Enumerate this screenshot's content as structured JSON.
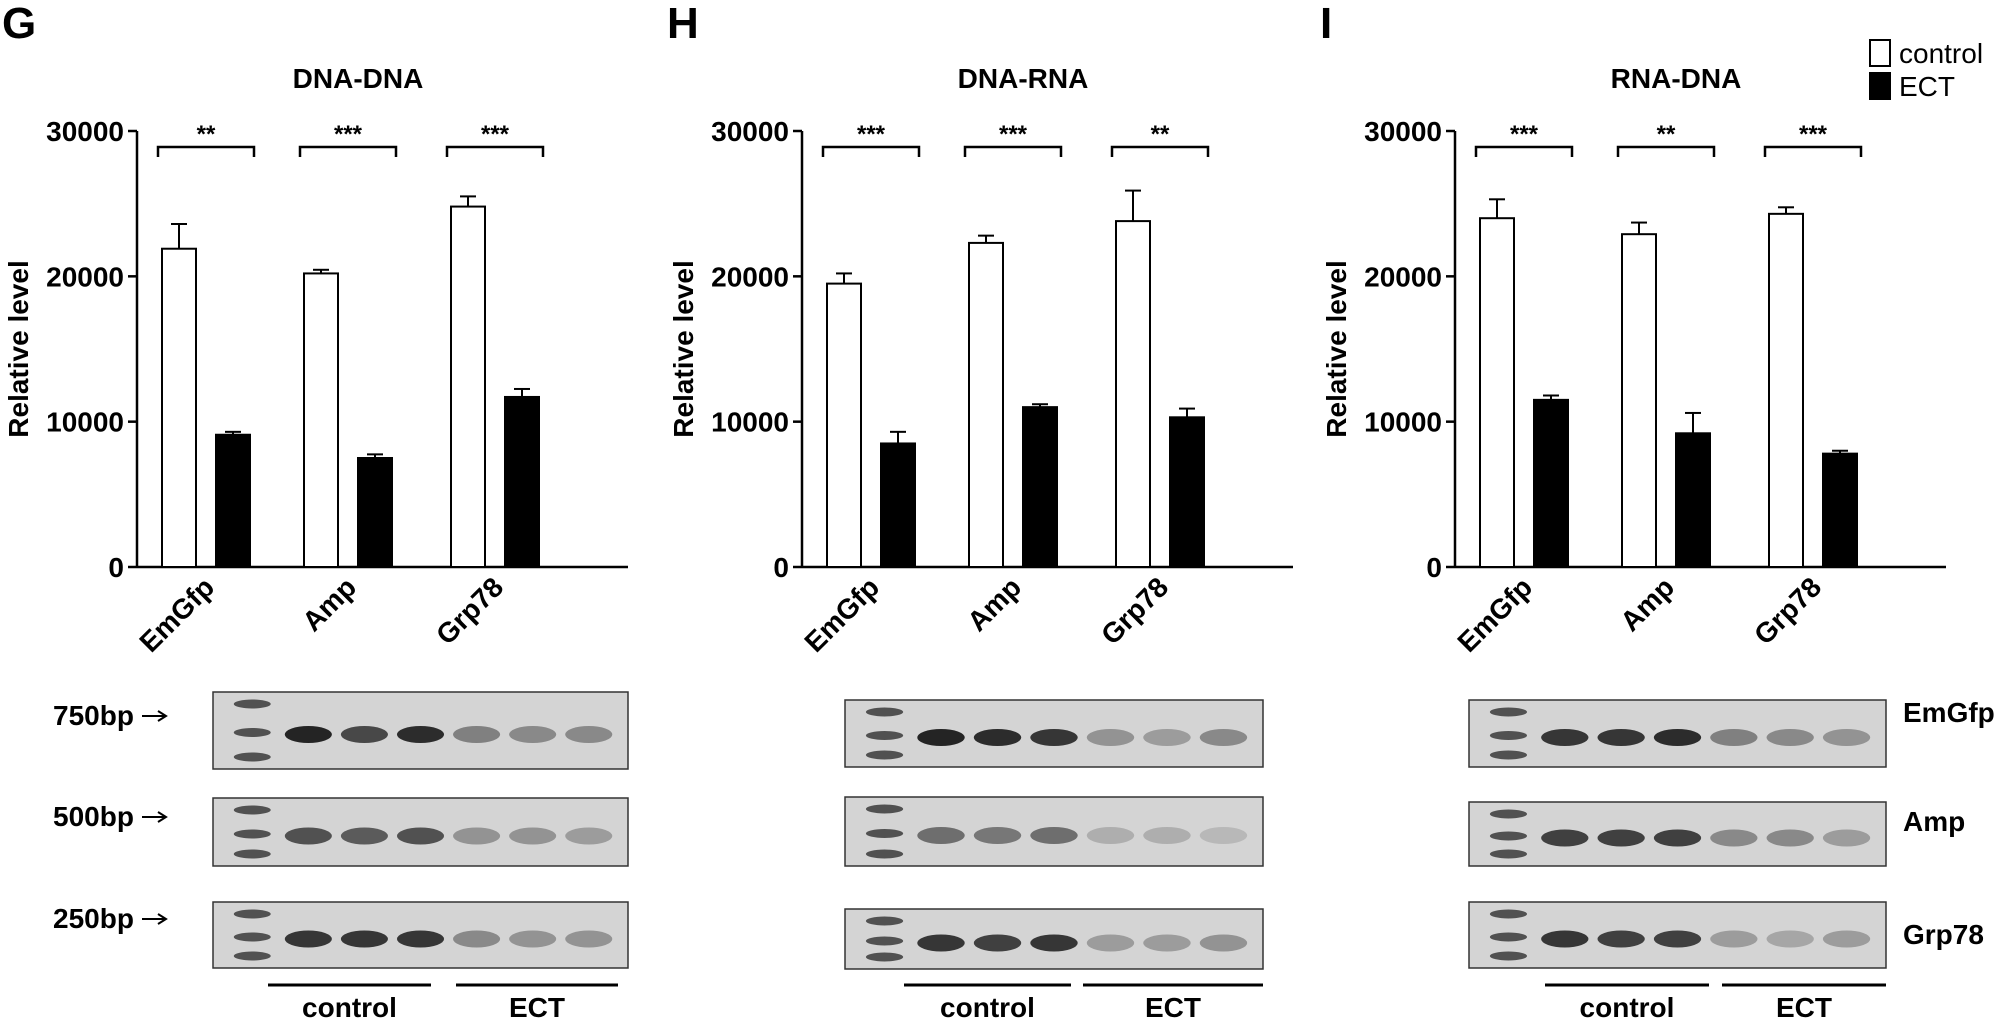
{
  "legend": {
    "position": "top-right",
    "items": [
      {
        "label": "control",
        "color": "#ffffff",
        "swatch": "hollow"
      },
      {
        "label": "ECT",
        "color": "#000000",
        "swatch": "filled"
      }
    ]
  },
  "gel_markers": [
    "750bp",
    "500bp",
    "250bp"
  ],
  "gel_row_labels": [
    "EmGfp",
    "Amp",
    "Grp78"
  ],
  "gel_group_labels": [
    "control",
    "ECT"
  ],
  "colors": {
    "control_fill": "#ffffff",
    "ect_fill": "#000000",
    "axis": "#000000",
    "gel_bg": "#d4d4d4",
    "band": "#1a1a1a"
  },
  "chart_data": [
    {
      "type": "bar",
      "panel_letter": "G",
      "title": "DNA-DNA",
      "xlabel": "",
      "ylabel": "Relative level",
      "ylim": [
        0,
        30000
      ],
      "yticks": [
        "0",
        "10000",
        "20000",
        "30000"
      ],
      "categories": [
        "EmGfp",
        "Amp",
        "Grp78"
      ],
      "series": [
        {
          "name": "control",
          "values": [
            21900,
            20200,
            24800
          ],
          "errors": [
            1700,
            250,
            700
          ]
        },
        {
          "name": "ECT",
          "values": [
            9100,
            7500,
            11700
          ],
          "errors": [
            200,
            250,
            550
          ]
        }
      ],
      "significance": [
        "**",
        "***",
        "***"
      ],
      "grid": false
    },
    {
      "type": "bar",
      "panel_letter": "H",
      "title": "DNA-RNA",
      "xlabel": "",
      "ylabel": "Relative level",
      "ylim": [
        0,
        30000
      ],
      "yticks": [
        "0",
        "10000",
        "20000",
        "30000"
      ],
      "categories": [
        "EmGfp",
        "Amp",
        "Grp78"
      ],
      "series": [
        {
          "name": "control",
          "values": [
            19500,
            22300,
            23800
          ],
          "errors": [
            700,
            500,
            2100
          ]
        },
        {
          "name": "ECT",
          "values": [
            8500,
            11000,
            10300
          ],
          "errors": [
            800,
            200,
            600
          ]
        }
      ],
      "significance": [
        "***",
        "***",
        "**"
      ],
      "grid": false
    },
    {
      "type": "bar",
      "panel_letter": "I",
      "title": "RNA-DNA",
      "xlabel": "",
      "ylabel": "Relative level",
      "ylim": [
        0,
        30000
      ],
      "yticks": [
        "0",
        "10000",
        "20000",
        "30000"
      ],
      "categories": [
        "EmGfp",
        "Amp",
        "Grp78"
      ],
      "series": [
        {
          "name": "control",
          "values": [
            24000,
            22900,
            24300
          ],
          "errors": [
            1300,
            800,
            450
          ]
        },
        {
          "name": "ECT",
          "values": [
            11500,
            9200,
            7800
          ],
          "errors": [
            300,
            1400,
            200
          ]
        }
      ],
      "significance": [
        "***",
        "**",
        "***"
      ],
      "grid": false
    }
  ]
}
